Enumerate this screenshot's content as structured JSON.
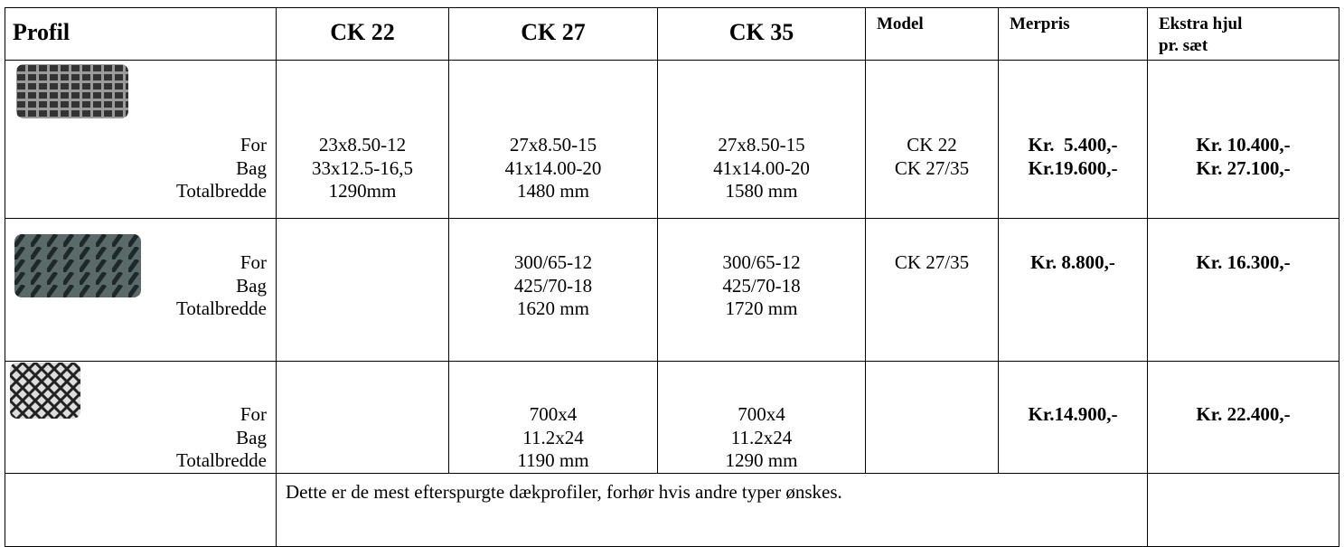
{
  "header": {
    "profile": "Profil",
    "columns": [
      "CK 22",
      "CK 27",
      "CK 35"
    ],
    "model": "Model",
    "price": "Merpris",
    "extra": [
      "Ekstra hjul",
      "pr. sæt"
    ]
  },
  "rows": [
    {
      "labels": [
        "For",
        "Bag",
        "Totalbredde"
      ],
      "cells": [
        [
          "23x8.50-12",
          "33x12.5-16,5",
          "1290mm"
        ],
        [
          "27x8.50-15",
          "41x14.00-20",
          "1480 mm"
        ],
        [
          "27x8.50-15",
          "41x14.00-20",
          "1580 mm"
        ],
        [
          "CK 22",
          "CK 27/35"
        ],
        [
          "Kr.  5.400,-",
          "Kr.19.600,-"
        ],
        [
          "Kr. 10.400,-",
          "Kr. 27.100,-"
        ]
      ]
    },
    {
      "labels": [
        "For",
        "Bag",
        "Totalbredde"
      ],
      "cells": [
        [],
        [
          "300/65-12",
          "425/70-18",
          "1620 mm"
        ],
        [
          "300/65-12",
          "425/70-18",
          "1720 mm"
        ],
        [
          "CK 27/35"
        ],
        [
          "Kr. 8.800,-"
        ],
        [
          "Kr. 16.300,-"
        ]
      ]
    },
    {
      "labels": [
        "For",
        "Bag",
        "Totalbredde"
      ],
      "cells": [
        [],
        [
          "700x4",
          "11.2x24",
          "1190 mm"
        ],
        [
          "700x4",
          "11.2x24",
          "1290 mm"
        ],
        [],
        [
          "Kr.14.900,-"
        ],
        [
          "Kr. 22.400,-"
        ]
      ]
    }
  ],
  "footer": {
    "note": "Dette er de mest efterspurgte dækprofiler, forhør hvis andre typer ønskes."
  }
}
